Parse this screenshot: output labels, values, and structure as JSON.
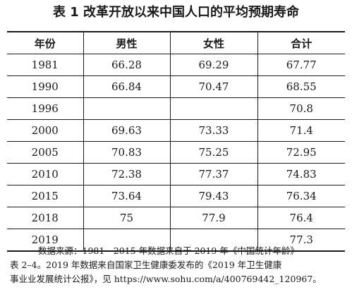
{
  "title": "表 1  改革开放以来中国人口的平均预期寿命",
  "headers": [
    "年份",
    "男性",
    "女性",
    "合计"
  ],
  "rows": [
    [
      "1981",
      "66.28",
      "69.29",
      "67.77"
    ],
    [
      "1990",
      "66.84",
      "70.47",
      "68.55"
    ],
    [
      "1996",
      "",
      "",
      "70.8"
    ],
    [
      "2000",
      "69.63",
      "73.33",
      "71.4"
    ],
    [
      "2005",
      "70.83",
      "75.25",
      "72.95"
    ],
    [
      "2010",
      "72.38",
      "77.37",
      "74.83"
    ],
    [
      "2015",
      "73.64",
      "79.43",
      "76.34"
    ],
    [
      "2018",
      "75",
      "77.9",
      "76.4"
    ],
    [
      "2019",
      "",
      "",
      "77.3"
    ]
  ],
  "note": {
    "line1": "数据来源：1981—2015 年数据来自于 2019 年《中国统计年龄》",
    "line2": "表 2–4。2019 年数据来自国家卫生健康委发布的《2019 年卫生健康",
    "line3": "事业业发展统计公报》，见 https://www.sohu.com/a/400769442_120967。"
  }
}
